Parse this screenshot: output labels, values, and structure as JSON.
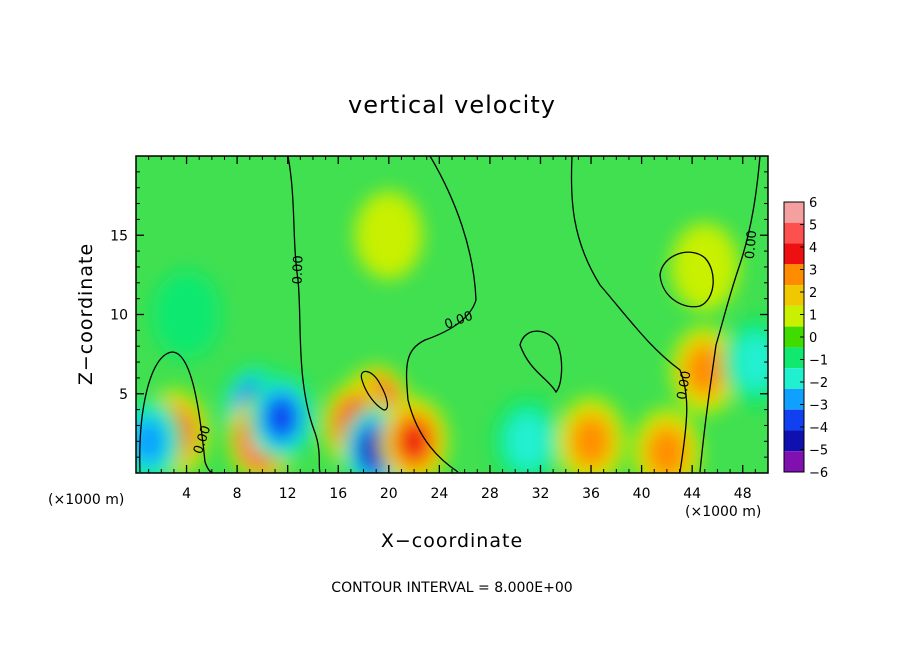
{
  "chart_data": {
    "type": "heatmap",
    "title": "vertical velocity",
    "xlabel": "X−coordinate",
    "ylabel": "Z−coordinate",
    "x_unit": "(×1000 m)",
    "y_unit": "(×1000 m)",
    "xlim": [
      0,
      50
    ],
    "ylim": [
      0,
      20
    ],
    "x_ticks": [
      4,
      8,
      12,
      16,
      20,
      24,
      28,
      32,
      36,
      40,
      44,
      48
    ],
    "x_tick_labels": [
      "4",
      "8",
      "12",
      "16",
      "20",
      "24",
      "28",
      "32",
      "36",
      "40",
      "44",
      "48"
    ],
    "y_ticks": [
      5,
      10,
      15
    ],
    "y_tick_labels": [
      "5",
      "10",
      "15"
    ],
    "colorbar": {
      "levels": [
        6,
        5,
        4,
        3,
        2,
        1,
        0,
        -1,
        -2,
        -3,
        -4,
        -5,
        -6
      ],
      "labels": [
        "6",
        "5",
        "4",
        "3",
        "2",
        "1",
        "0",
        "−1",
        "−2",
        "−3",
        "−4",
        "−5",
        "−6"
      ],
      "colors": [
        "#f4a0a0",
        "#ff5050",
        "#ee1010",
        "#ff8c00",
        "#f0c800",
        "#c8f000",
        "#40dc00",
        "#10e870",
        "#20f0d0",
        "#10a0ff",
        "#1040f0",
        "#1010b0",
        "#8010b0"
      ]
    },
    "contour_label": "0.00",
    "contour_interval": "CONTOUR INTERVAL = 8.000E+00",
    "background_color": "#40e050",
    "features": [
      {
        "x": 3,
        "z": 2.5,
        "w": 4
      },
      {
        "x": 9.5,
        "z": 4,
        "w": -5
      },
      {
        "x": 10,
        "z": 2.2,
        "w": 6
      },
      {
        "x": 11.5,
        "z": 3.5,
        "w": -4
      },
      {
        "x": 19,
        "z": 4,
        "w": 6
      },
      {
        "x": 17.5,
        "z": 3,
        "w": 5
      },
      {
        "x": 19,
        "z": 1.5,
        "w": -5
      },
      {
        "x": 22,
        "z": 2,
        "w": 4
      },
      {
        "x": 45,
        "z": 6.5,
        "w": 3
      },
      {
        "x": 45,
        "z": 13,
        "w": 0.5
      },
      {
        "x": 49,
        "z": 7,
        "w": -2
      },
      {
        "x": 1,
        "z": 2,
        "w": -3
      },
      {
        "x": 31,
        "z": 2,
        "w": -2
      },
      {
        "x": 36,
        "z": 2,
        "w": 3
      },
      {
        "x": 42,
        "z": 1.3,
        "w": 3
      },
      {
        "x": 4,
        "z": 10,
        "w": -1
      },
      {
        "x": 20,
        "z": 15,
        "w": 0.5
      }
    ]
  }
}
